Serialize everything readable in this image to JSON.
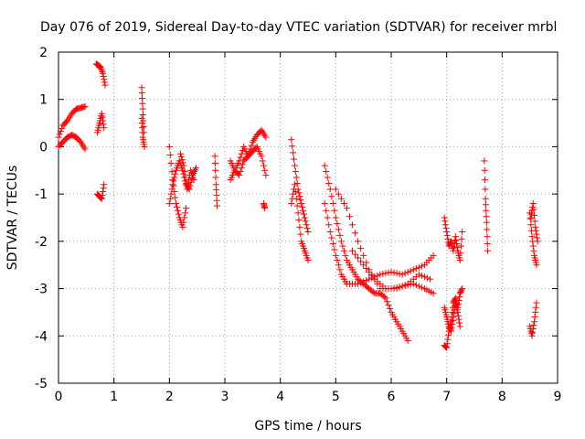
{
  "chart_data": {
    "type": "scatter",
    "title": "Day 076 of 2019, Sidereal Day-to-day VTEC variation (SDTVAR) for receiver mrbl",
    "xlabel": "GPS time / hours",
    "ylabel": "SDTVAR / TECUs",
    "xlim": [
      0,
      9
    ],
    "ylim": [
      -5,
      2
    ],
    "x_ticks": [
      0,
      1,
      2,
      3,
      4,
      5,
      6,
      7,
      8,
      9
    ],
    "y_ticks": [
      -5,
      -4,
      -3,
      -2,
      -1,
      0,
      1,
      2
    ],
    "grid": true,
    "marker": "+",
    "color": "#ff0000",
    "series_segments": [
      {
        "x": [
          0.0,
          0.08,
          0.16,
          0.24,
          0.32,
          0.4,
          0.48
        ],
        "y": [
          0.0,
          0.1,
          0.2,
          0.25,
          0.2,
          0.1,
          -0.05
        ]
      },
      {
        "x": [
          0.0,
          0.08,
          0.16,
          0.24,
          0.32,
          0.4,
          0.48
        ],
        "y": [
          0.2,
          0.45,
          0.55,
          0.7,
          0.8,
          0.82,
          0.85
        ]
      },
      {
        "x": [
          0.68,
          0.72,
          0.76,
          0.8,
          0.84
        ],
        "y": [
          1.75,
          1.72,
          1.68,
          1.55,
          1.3
        ]
      },
      {
        "x": [
          0.7,
          0.74,
          0.78,
          0.82
        ],
        "y": [
          0.3,
          0.5,
          0.7,
          0.4
        ]
      },
      {
        "x": [
          0.7,
          0.74,
          0.78,
          0.82
        ],
        "y": [
          -1.0,
          -1.05,
          -1.1,
          -0.8
        ]
      },
      {
        "x": [
          1.5,
          1.52,
          1.54
        ],
        "y": [
          1.25,
          0.8,
          0.3
        ]
      },
      {
        "x": [
          1.5,
          1.52,
          1.55
        ],
        "y": [
          0.6,
          0.2,
          0.0
        ]
      },
      {
        "x": [
          2.0,
          2.06,
          2.12,
          2.18,
          2.24,
          2.3
        ],
        "y": [
          0.0,
          -0.7,
          -1.2,
          -1.5,
          -1.7,
          -1.3
        ]
      },
      {
        "x": [
          2.0,
          2.06,
          2.12,
          2.18,
          2.24,
          2.3,
          2.36,
          2.42,
          2.48
        ],
        "y": [
          -1.2,
          -0.8,
          -0.5,
          -0.3,
          -0.5,
          -0.8,
          -0.9,
          -0.6,
          -0.45
        ]
      },
      {
        "x": [
          2.2,
          2.26,
          2.32,
          2.38,
          2.44
        ],
        "y": [
          -0.15,
          -0.4,
          -0.9,
          -0.5,
          -0.7
        ]
      },
      {
        "x": [
          2.82,
          2.84,
          2.86
        ],
        "y": [
          -0.2,
          -0.8,
          -1.25
        ]
      },
      {
        "x": [
          3.1,
          3.18,
          3.26,
          3.34,
          3.42,
          3.5,
          3.58,
          3.66,
          3.74
        ],
        "y": [
          -0.7,
          -0.5,
          -0.3,
          0.0,
          -0.2,
          0.1,
          0.25,
          0.35,
          0.2
        ]
      },
      {
        "x": [
          3.1,
          3.18,
          3.26,
          3.34,
          3.42,
          3.5,
          3.58,
          3.66,
          3.74
        ],
        "y": [
          -0.3,
          -0.5,
          -0.6,
          -0.3,
          -0.2,
          -0.1,
          0.0,
          -0.2,
          -0.6
        ]
      },
      {
        "x": [
          3.7,
          3.72
        ],
        "y": [
          -1.2,
          -1.3
        ]
      },
      {
        "x": [
          4.2,
          4.26,
          4.32,
          4.38,
          4.44,
          4.5
        ],
        "y": [
          0.15,
          -0.4,
          -0.9,
          -1.2,
          -1.5,
          -1.8
        ]
      },
      {
        "x": [
          4.2,
          4.26,
          4.32,
          4.38,
          4.44,
          4.5
        ],
        "y": [
          -1.2,
          -0.8,
          -1.4,
          -2.0,
          -2.2,
          -2.4
        ]
      },
      {
        "x": [
          4.8,
          4.9,
          5.0,
          5.1,
          5.2,
          5.3,
          5.4,
          5.5,
          5.6,
          5.7,
          5.8,
          5.9,
          6.0,
          6.1,
          6.2,
          6.3
        ],
        "y": [
          -0.4,
          -0.9,
          -1.5,
          -2.0,
          -2.4,
          -2.6,
          -2.8,
          -2.9,
          -3.0,
          -3.1,
          -3.1,
          -3.2,
          -3.5,
          -3.7,
          -3.9,
          -4.1
        ]
      },
      {
        "x": [
          4.8,
          4.9,
          5.0,
          5.1,
          5.2,
          5.4,
          5.6,
          5.8,
          6.0,
          6.2,
          6.4,
          6.6,
          6.76
        ],
        "y": [
          -1.2,
          -1.8,
          -2.3,
          -2.7,
          -2.9,
          -2.9,
          -2.8,
          -2.7,
          -2.65,
          -2.7,
          -2.6,
          -2.5,
          -2.3
        ]
      },
      {
        "x": [
          5.0,
          5.2,
          5.4,
          5.6,
          5.8,
          6.0,
          6.2,
          6.4,
          6.6,
          6.76
        ],
        "y": [
          -0.9,
          -1.3,
          -2.0,
          -2.6,
          -3.0,
          -3.0,
          -2.95,
          -2.9,
          -3.0,
          -3.1
        ]
      },
      {
        "x": [
          5.3,
          5.5,
          5.7,
          5.9,
          6.1,
          6.3,
          6.5,
          6.7
        ],
        "y": [
          -2.2,
          -2.5,
          -2.8,
          -3.0,
          -3.0,
          -2.9,
          -2.7,
          -2.8
        ]
      },
      {
        "x": [
          6.96,
          7.0,
          7.04,
          7.08,
          7.12,
          7.16,
          7.2,
          7.24,
          7.28
        ],
        "y": [
          -4.2,
          -4.25,
          -3.9,
          -3.7,
          -3.3,
          -3.2,
          -3.4,
          -3.1,
          -3.0
        ]
      },
      {
        "x": [
          6.96,
          7.0,
          7.04,
          7.08,
          7.12,
          7.16,
          7.2,
          7.24
        ],
        "y": [
          -3.4,
          -3.6,
          -3.8,
          -3.9,
          -3.6,
          -3.3,
          -3.5,
          -3.8
        ]
      },
      {
        "x": [
          6.96,
          7.0,
          7.04,
          7.08,
          7.12,
          7.16,
          7.2,
          7.24,
          7.28
        ],
        "y": [
          -1.5,
          -1.8,
          -2.1,
          -2.0,
          -2.2,
          -1.9,
          -2.2,
          -2.4,
          -1.8
        ]
      },
      {
        "x": [
          7.68,
          7.7,
          7.72,
          7.74
        ],
        "y": [
          -0.3,
          -1.1,
          -1.6,
          -2.2
        ]
      },
      {
        "x": [
          8.5,
          8.54,
          8.58,
          8.62
        ],
        "y": [
          -1.4,
          -1.9,
          -2.3,
          -2.5
        ]
      },
      {
        "x": [
          8.5,
          8.54,
          8.58,
          8.62
        ],
        "y": [
          -3.8,
          -4.0,
          -3.7,
          -3.3
        ]
      },
      {
        "x": [
          8.52,
          8.56,
          8.6,
          8.64
        ],
        "y": [
          -1.5,
          -1.2,
          -1.7,
          -2.0
        ]
      }
    ]
  }
}
